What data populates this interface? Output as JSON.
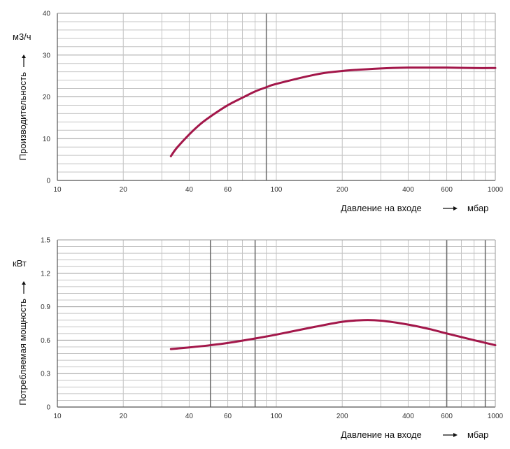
{
  "chart_data": [
    {
      "type": "line",
      "x_scale": "log",
      "ylabel": "Производительность",
      "y_unit": "м3/ч",
      "xlabel": "Давление на входе",
      "x_unit": "мбар",
      "xlim": [
        10,
        1000
      ],
      "ylim": [
        0,
        40
      ],
      "x_ticks": [
        10,
        20,
        40,
        60,
        100,
        200,
        400,
        600,
        1000
      ],
      "y_ticks": [
        0,
        10,
        20,
        30,
        40
      ],
      "grid": true,
      "line_color": "#a3174a",
      "series": [
        {
          "x": [
            33,
            35,
            40,
            45,
            50,
            60,
            70,
            80,
            90,
            100,
            150,
            200,
            300,
            400,
            500,
            600,
            800,
            1000
          ],
          "y": [
            5.8,
            7.7,
            11.0,
            13.5,
            15.3,
            18.0,
            19.8,
            21.3,
            22.3,
            23.1,
            25.3,
            26.2,
            26.8,
            27.0,
            27.0,
            27.0,
            26.9,
            26.9
          ]
        }
      ]
    },
    {
      "type": "line",
      "x_scale": "log",
      "ylabel": "Потребляемая мощность",
      "y_unit": "кВт",
      "xlabel": "Давление на входе",
      "x_unit": "мбар",
      "xlim": [
        10,
        1000
      ],
      "ylim": [
        0,
        1.5
      ],
      "x_ticks": [
        10,
        20,
        40,
        60,
        100,
        200,
        400,
        600,
        1000
      ],
      "y_ticks": [
        "0",
        "0.3",
        "0.6",
        "0.9",
        "1.2",
        "1.5"
      ],
      "y_tick_values": [
        0,
        0.3,
        0.6,
        0.9,
        1.2,
        1.5
      ],
      "grid": true,
      "line_color": "#a3174a",
      "series": [
        {
          "x": [
            33,
            40,
            50,
            60,
            80,
            100,
            150,
            200,
            250,
            300,
            400,
            500,
            600,
            800,
            1000
          ],
          "y": [
            0.52,
            0.535,
            0.555,
            0.575,
            0.615,
            0.65,
            0.72,
            0.765,
            0.78,
            0.775,
            0.74,
            0.7,
            0.66,
            0.6,
            0.555
          ]
        }
      ]
    }
  ]
}
